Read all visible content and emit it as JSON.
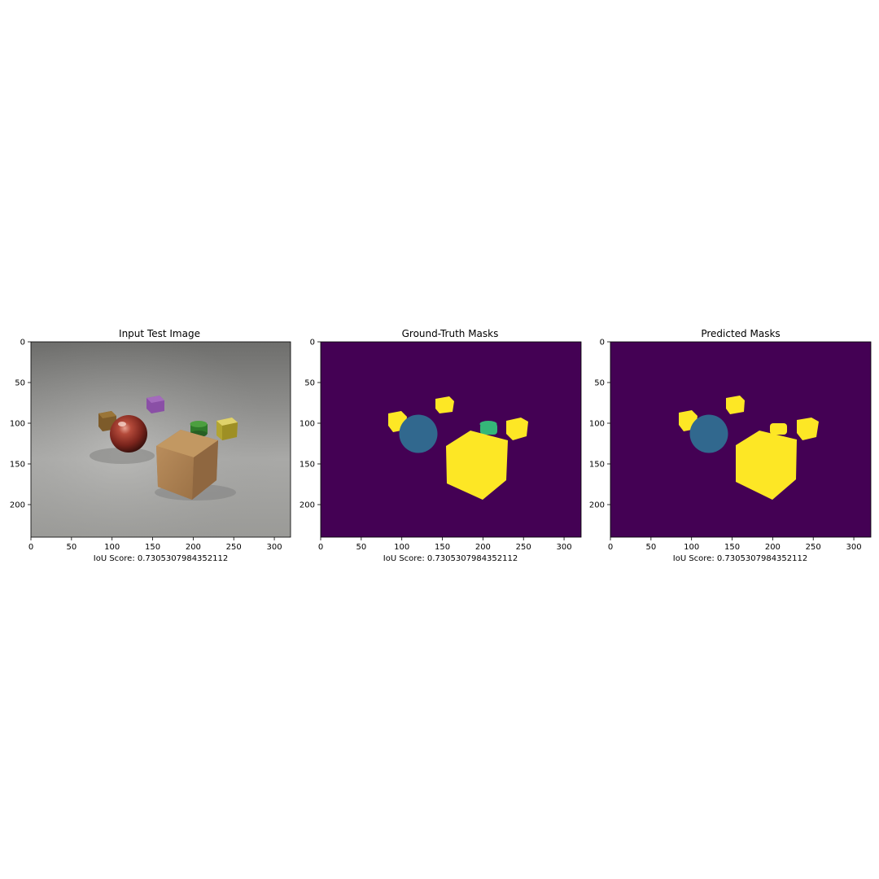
{
  "figure": {
    "panels": [
      {
        "title": "Input Test Image",
        "xlabel": "IoU Score: 0.7305307984352112",
        "kind": "photo"
      },
      {
        "title": "Ground-Truth Masks",
        "xlabel": "IoU Score: 0.7305307984352112",
        "kind": "mask"
      },
      {
        "title": "Predicted Masks",
        "xlabel": "IoU Score: 0.7305307984352112",
        "kind": "mask"
      }
    ],
    "x_ticks": [
      0,
      50,
      100,
      150,
      200,
      250,
      300
    ],
    "y_ticks": [
      0,
      50,
      100,
      150,
      200
    ],
    "x_range": [
      0,
      320
    ],
    "y_range": [
      0,
      240
    ],
    "colors": {
      "mask_background": "#440154",
      "mask_cube": "#fde725",
      "mask_sphere": "#31688e",
      "mask_cylinder": "#35b779"
    }
  }
}
